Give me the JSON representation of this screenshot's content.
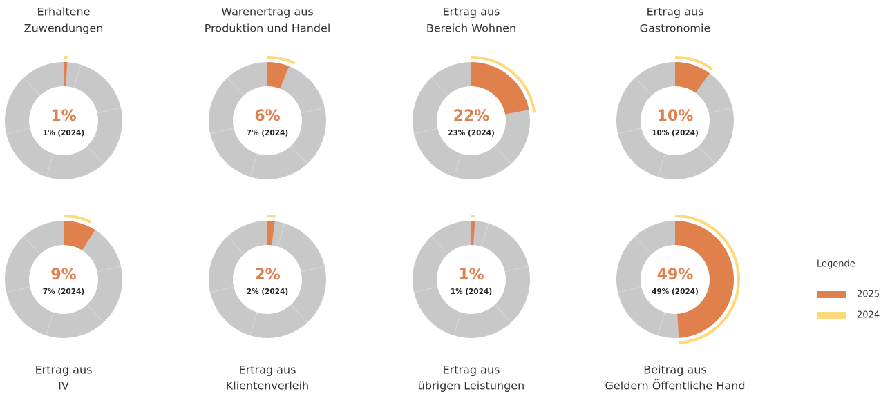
{
  "legend": {
    "title": "Legende",
    "items": [
      {
        "name": "2025",
        "color": "#e0814d"
      },
      {
        "name": "2024",
        "color": "#fdd97a"
      }
    ]
  },
  "chart_data": [
    {
      "type": "donut",
      "title": [
        "Erhaltene",
        "Zuwendungen"
      ],
      "values": [
        1
      ],
      "value_labels": [
        "1%"
      ],
      "prior_values": [
        1
      ],
      "prior_labels": [
        "1% (2024)"
      ]
    },
    {
      "type": "donut",
      "title": [
        "Warenertrag aus",
        "Produktion und Handel"
      ],
      "values": [
        6
      ],
      "value_labels": [
        "6%"
      ],
      "prior_values": [
        7
      ],
      "prior_labels": [
        "7% (2024)"
      ]
    },
    {
      "type": "donut",
      "title": [
        "Ertrag aus",
        "Bereich Wohnen"
      ],
      "values": [
        22
      ],
      "value_labels": [
        "22%"
      ],
      "prior_values": [
        23
      ],
      "prior_labels": [
        "23% (2024)"
      ]
    },
    {
      "type": "donut",
      "title": [
        "Ertrag aus",
        "Gastronomie"
      ],
      "values": [
        10
      ],
      "value_labels": [
        "10%"
      ],
      "prior_values": [
        10
      ],
      "prior_labels": [
        "10% (2024)"
      ]
    },
    {
      "type": "donut",
      "title": [
        "Ertrag aus",
        "IV"
      ],
      "values": [
        9
      ],
      "value_labels": [
        "9%"
      ],
      "prior_values": [
        7
      ],
      "prior_labels": [
        "7% (2024)"
      ]
    },
    {
      "type": "donut",
      "title": [
        "Ertrag aus",
        "Klientenverleih"
      ],
      "values": [
        2
      ],
      "value_labels": [
        "2%"
      ],
      "prior_values": [
        2
      ],
      "prior_labels": [
        "2% (2024)"
      ]
    },
    {
      "type": "donut",
      "title": [
        "Ertrag aus",
        "übrigen Leistungen"
      ],
      "values": [
        1
      ],
      "value_labels": [
        "1%"
      ],
      "prior_values": [
        1
      ],
      "prior_labels": [
        "1% (2024)"
      ]
    },
    {
      "type": "donut",
      "title": [
        "Beitrag aus",
        "Geldern Öffentliche Hand"
      ],
      "values": [
        49
      ],
      "value_labels": [
        "49%"
      ],
      "prior_values": [
        49
      ],
      "prior_labels": [
        "49% (2024)"
      ]
    }
  ]
}
